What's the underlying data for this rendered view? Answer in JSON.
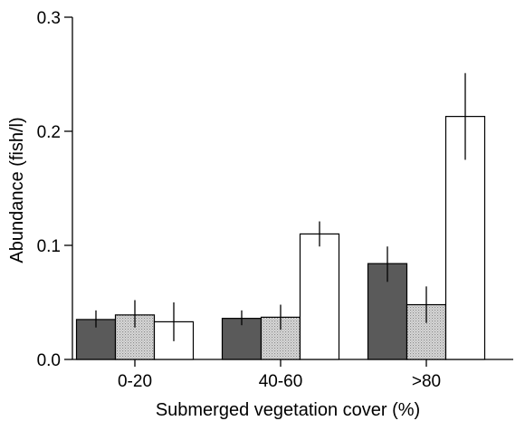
{
  "chart_data": {
    "type": "bar",
    "xlabel": "Submerged vegetation cover (%)",
    "ylabel": "Abundance (fish/l)",
    "categories": [
      "0-20",
      "40-60",
      ">80"
    ],
    "ylim": [
      0,
      0.3
    ],
    "yticks": [
      "0.0",
      "0.1",
      "0.2",
      "0.3"
    ],
    "legend": "none",
    "grid": false,
    "series": [
      {
        "fill": "#5a5a5a",
        "pattern": "solid",
        "values": [
          0.035,
          0.036,
          0.084
        ],
        "err_low": [
          0.028,
          0.03,
          0.068
        ],
        "err_high": [
          0.043,
          0.043,
          0.099
        ]
      },
      {
        "fill": "#d8d8d8",
        "pattern": "dotted",
        "values": [
          0.039,
          0.037,
          0.048
        ],
        "err_low": [
          0.028,
          0.026,
          0.032
        ],
        "err_high": [
          0.052,
          0.048,
          0.064
        ]
      },
      {
        "fill": "#ffffff",
        "pattern": "none",
        "values": [
          0.033,
          0.11,
          0.213
        ],
        "err_low": [
          0.016,
          0.099,
          0.175
        ],
        "err_high": [
          0.05,
          0.121,
          0.251
        ]
      }
    ]
  }
}
